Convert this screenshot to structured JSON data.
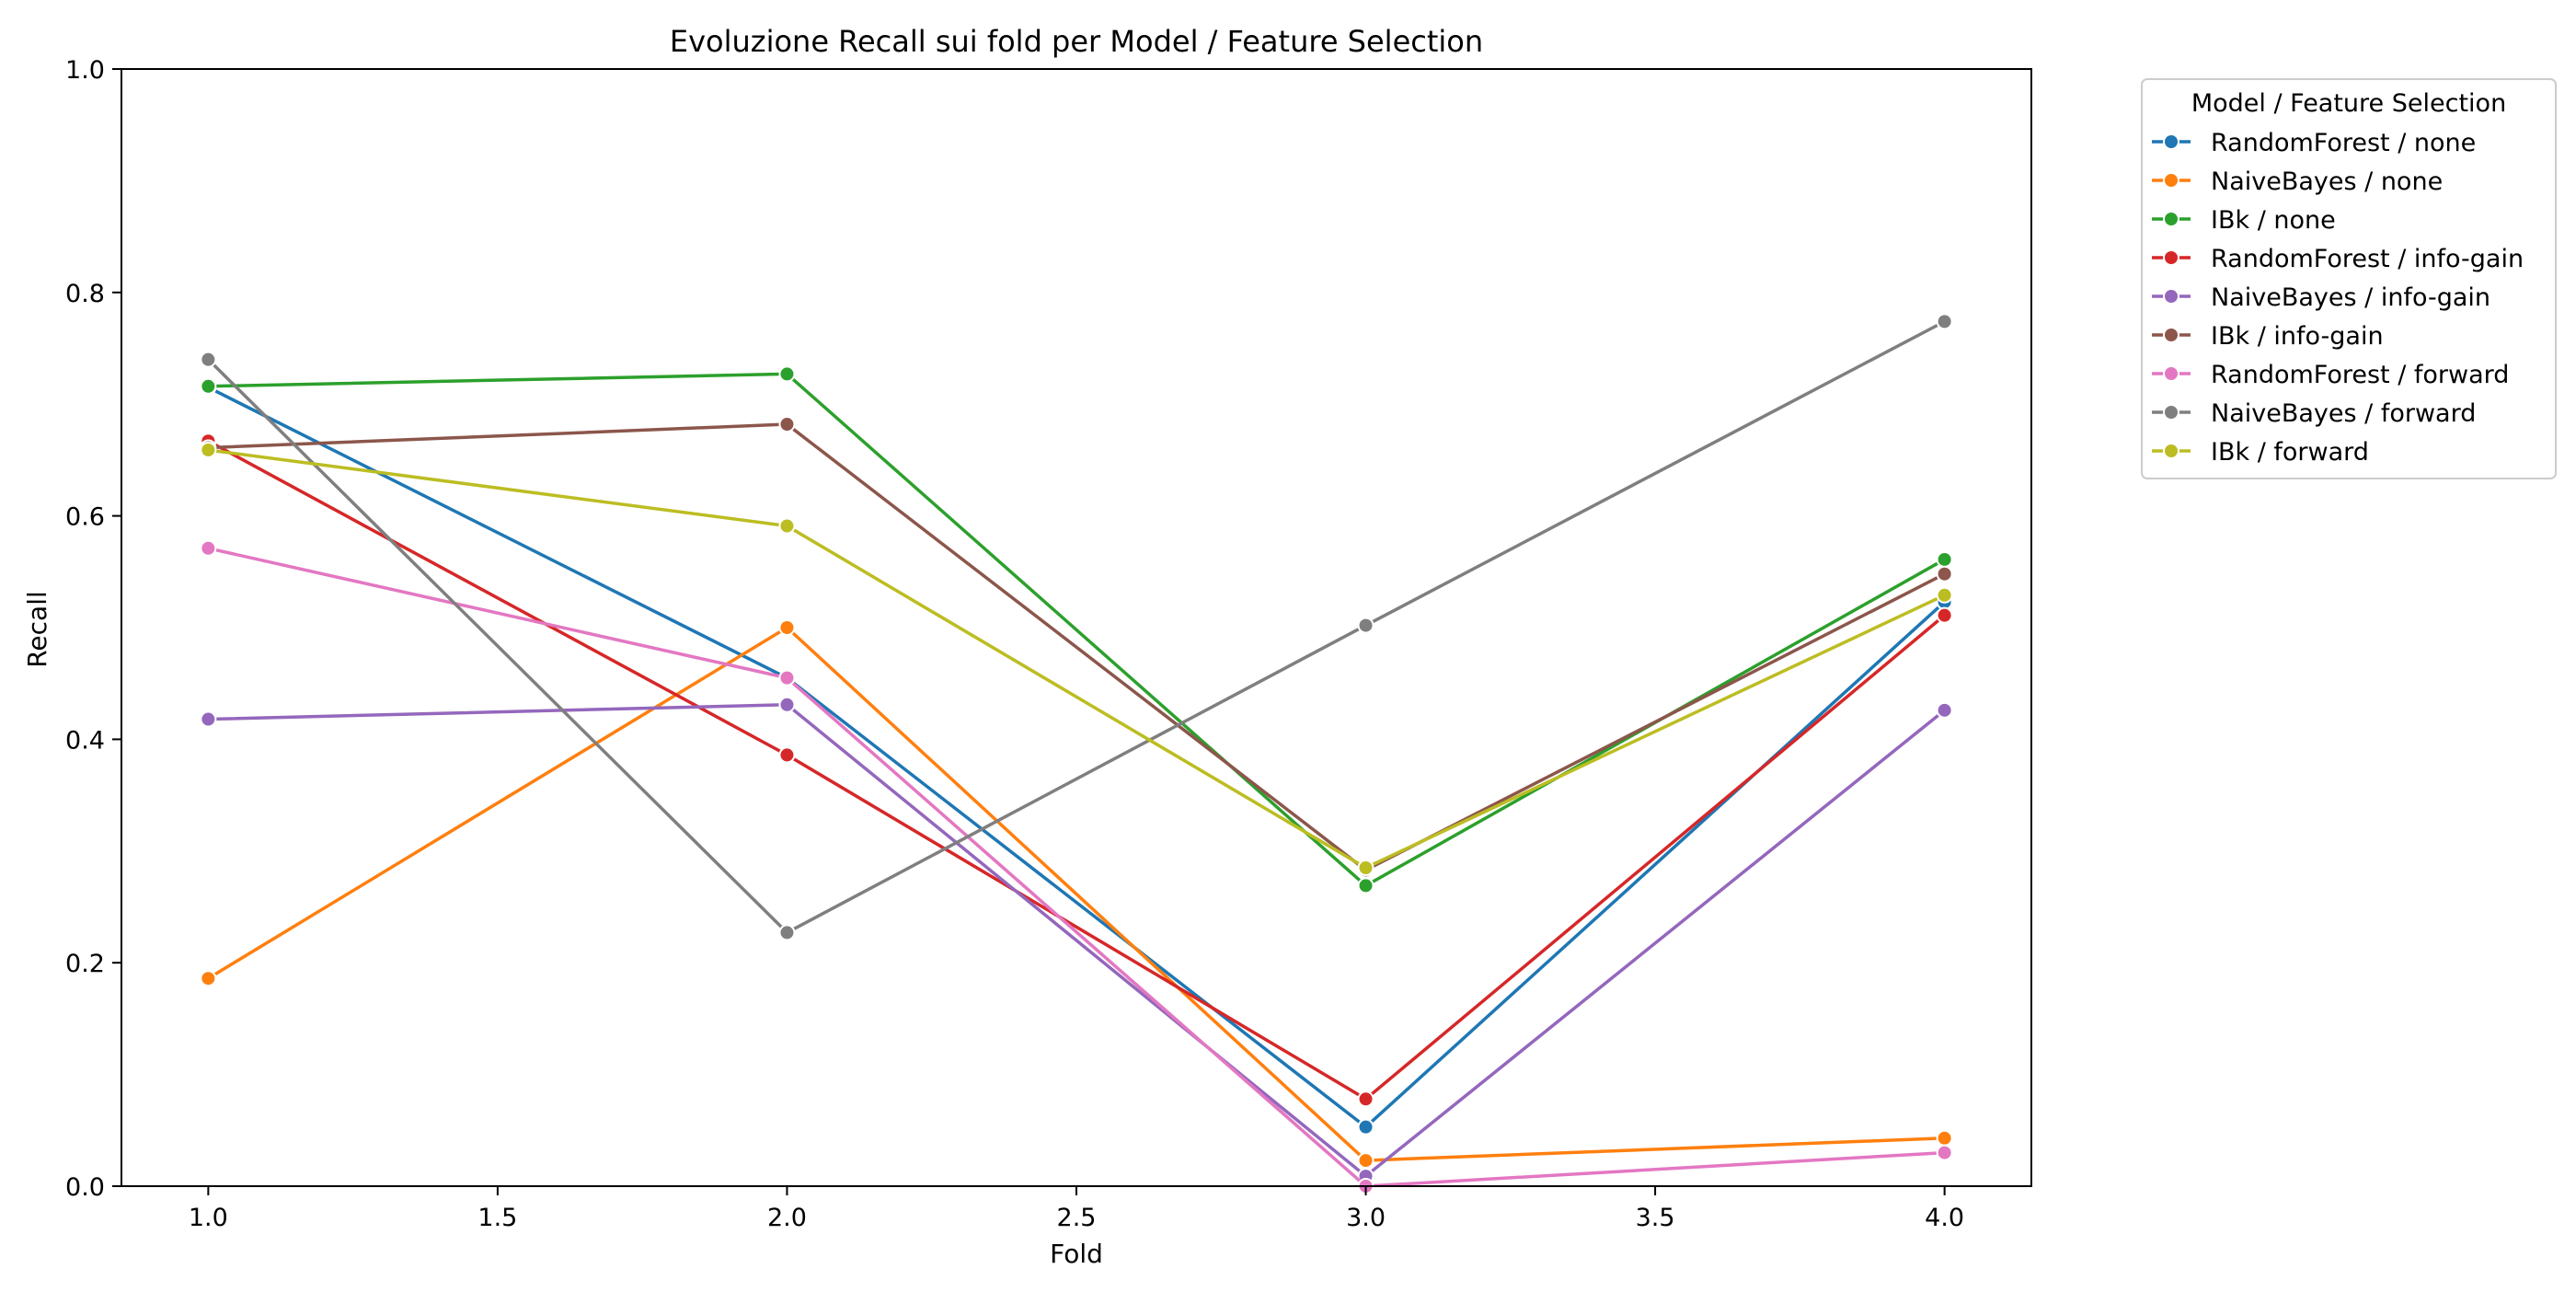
{
  "chart_data": {
    "type": "line",
    "title": "Evoluzione Recall sui fold per Model / Feature Selection",
    "xlabel": "Fold",
    "ylabel": "Recall",
    "xlim": [
      0.85,
      4.15
    ],
    "ylim": [
      0.0,
      1.0
    ],
    "x_ticks": [
      "1.0",
      "1.5",
      "2.0",
      "2.5",
      "3.0",
      "3.5",
      "4.0"
    ],
    "y_ticks": [
      "0.0",
      "0.2",
      "0.4",
      "0.6",
      "0.8",
      "1.0"
    ],
    "grid": false,
    "legend": {
      "title": "Model / Feature Selection",
      "placement": "outside-top-right"
    },
    "x": [
      1.0,
      2.0,
      3.0,
      4.0
    ],
    "series": [
      {
        "name": "RandomForest / none",
        "color": "#1f77b4",
        "values": [
          0.715,
          0.455,
          0.053,
          0.523
        ]
      },
      {
        "name": "NaiveBayes / none",
        "color": "#ff7f0e",
        "values": [
          0.186,
          0.5,
          0.023,
          0.043
        ]
      },
      {
        "name": "IBk / none",
        "color": "#2ca02c",
        "values": [
          0.716,
          0.727,
          0.269,
          0.561
        ]
      },
      {
        "name": "RandomForest / info-gain",
        "color": "#d62728",
        "values": [
          0.667,
          0.386,
          0.078,
          0.511
        ]
      },
      {
        "name": "NaiveBayes / info-gain",
        "color": "#9467bd",
        "values": [
          0.418,
          0.431,
          0.009,
          0.426
        ]
      },
      {
        "name": "IBk / info-gain",
        "color": "#8c564b",
        "values": [
          0.661,
          0.682,
          0.283,
          0.548
        ]
      },
      {
        "name": "RandomForest / forward",
        "color": "#e377c2",
        "values": [
          0.571,
          0.455,
          0.0,
          0.03
        ]
      },
      {
        "name": "NaiveBayes / forward",
        "color": "#7f7f7f",
        "values": [
          0.74,
          0.227,
          0.502,
          0.774
        ]
      },
      {
        "name": "IBk / forward",
        "color": "#bcbd22",
        "values": [
          0.659,
          0.591,
          0.285,
          0.529
        ]
      }
    ]
  }
}
